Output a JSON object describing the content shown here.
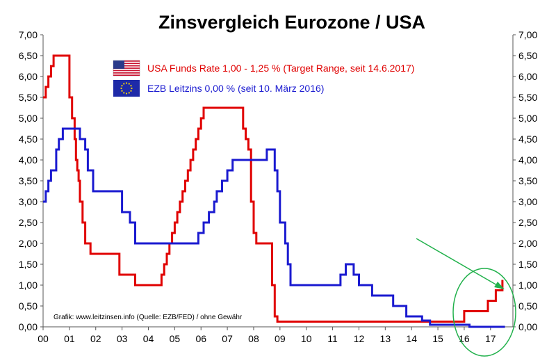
{
  "chart_data": {
    "type": "line",
    "title": "Zinsvergleich Eurozone / USA",
    "x_tick_labels": [
      "00",
      "01",
      "02",
      "03",
      "04",
      "05",
      "06",
      "07",
      "08",
      "09",
      "10",
      "11",
      "12",
      "13",
      "14",
      "15",
      "16",
      "17"
    ],
    "y_tick_labels": [
      "0,00",
      "0,50",
      "1,00",
      "1,50",
      "2,00",
      "2,50",
      "3,00",
      "3,50",
      "4,00",
      "4,50",
      "5,00",
      "5,50",
      "6,00",
      "6,50",
      "7,00"
    ],
    "xlim": [
      2000,
      2017.85
    ],
    "ylim": [
      0,
      7
    ],
    "grid": false,
    "legend_placement": "top-center",
    "source_note": "Grafik: www.leitzinsen.info (Quelle: EZB/FED) / ohne Gewähr",
    "series": [
      {
        "name": "USA Funds Rate 1,00 - 1,25 % (Target Range, seit 14.6.2017)",
        "color": "#e00000",
        "flag_icon": "us-flag-icon",
        "x": [
          2000.0,
          2000.1,
          2000.2,
          2000.3,
          2000.4,
          2001.0,
          2001.1,
          2001.2,
          2001.25,
          2001.3,
          2001.35,
          2001.4,
          2001.5,
          2001.6,
          2001.7,
          2001.8,
          2001.9,
          2002.0,
          2002.9,
          2003.5,
          2004.5,
          2004.6,
          2004.7,
          2004.8,
          2004.9,
          2005.0,
          2005.1,
          2005.2,
          2005.3,
          2005.4,
          2005.5,
          2005.6,
          2005.7,
          2005.8,
          2005.9,
          2006.0,
          2006.1,
          2006.2,
          2006.3,
          2006.4,
          2006.5,
          2007.6,
          2007.7,
          2007.8,
          2007.9,
          2008.0,
          2008.1,
          2008.2,
          2008.3,
          2008.7,
          2008.8,
          2008.9,
          2016.0,
          2016.9,
          2017.2,
          2017.45
        ],
        "y": [
          5.5,
          5.75,
          6.0,
          6.25,
          6.5,
          5.5,
          5.0,
          4.5,
          4.0,
          3.75,
          3.5,
          3.0,
          2.5,
          2.0,
          2.0,
          1.75,
          1.75,
          1.75,
          1.25,
          1.0,
          1.25,
          1.5,
          1.75,
          2.0,
          2.25,
          2.5,
          2.75,
          3.0,
          3.25,
          3.5,
          3.75,
          4.0,
          4.25,
          4.5,
          4.75,
          5.0,
          5.25,
          5.25,
          5.25,
          5.25,
          5.25,
          4.75,
          4.5,
          4.25,
          3.0,
          2.25,
          2.0,
          2.0,
          2.0,
          1.0,
          0.25,
          0.125,
          0.375,
          0.625,
          0.875,
          1.125
        ]
      },
      {
        "name": "EZB Leitzins 0,00 % (seit 10. März 2016)",
        "color": "#1a1ad0",
        "flag_icon": "eu-flag-icon",
        "x": [
          2000.0,
          2000.1,
          2000.2,
          2000.3,
          2000.5,
          2000.6,
          2000.75,
          2001.4,
          2001.6,
          2001.7,
          2001.9,
          2003.0,
          2003.3,
          2003.5,
          2005.9,
          2006.1,
          2006.3,
          2006.5,
          2006.6,
          2006.8,
          2007.0,
          2007.2,
          2007.5,
          2008.5,
          2008.8,
          2008.9,
          2009.0,
          2009.2,
          2009.3,
          2009.4,
          2011.3,
          2011.5,
          2011.8,
          2012.0,
          2012.5,
          2013.3,
          2013.8,
          2014.4,
          2014.7,
          2015.0,
          2016.2
        ],
        "y": [
          3.0,
          3.25,
          3.5,
          3.75,
          4.25,
          4.5,
          4.75,
          4.5,
          4.25,
          3.75,
          3.25,
          2.75,
          2.5,
          2.0,
          2.25,
          2.5,
          2.75,
          3.0,
          3.25,
          3.5,
          3.75,
          4.0,
          4.0,
          4.25,
          3.75,
          3.25,
          2.5,
          2.0,
          1.5,
          1.0,
          1.25,
          1.5,
          1.25,
          1.0,
          0.75,
          0.5,
          0.25,
          0.15,
          0.05,
          0.05,
          0.0
        ],
        "x_end": 2017.55
      }
    ]
  }
}
